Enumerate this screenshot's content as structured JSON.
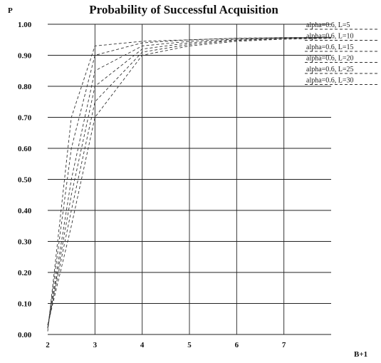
{
  "chart_data": {
    "type": "line",
    "title": "Probability of Successful Acquisition",
    "ylabel": "P",
    "xlabel": "B+1",
    "xlim": [
      2,
      8
    ],
    "ylim": [
      0,
      1
    ],
    "x_ticks": [
      2,
      3,
      4,
      5,
      6,
      7
    ],
    "y_ticks": [
      0.0,
      0.1,
      0.2,
      0.3,
      0.4,
      0.5,
      0.6,
      0.7,
      0.8,
      0.9,
      1.0
    ],
    "y_tick_labels": [
      "0.00",
      "0.10",
      "0.20",
      "0.30",
      "0.40",
      "0.50",
      "0.60",
      "0.70",
      "0.80",
      "0.90",
      "1.00"
    ],
    "grid": true,
    "legend_position": "top-right",
    "series": [
      {
        "name": "alpha=0.6, L=5",
        "x": [
          2,
          2.5,
          3,
          4,
          5,
          6,
          7,
          8
        ],
        "y": [
          0.01,
          0.7,
          0.93,
          0.945,
          0.95,
          0.955,
          0.957,
          0.958
        ]
      },
      {
        "name": "alpha=0.6, L=10",
        "x": [
          2,
          2.5,
          3,
          4,
          5,
          6,
          7,
          8
        ],
        "y": [
          0.02,
          0.6,
          0.9,
          0.94,
          0.95,
          0.955,
          0.957,
          0.958
        ]
      },
      {
        "name": "alpha=0.6, L=15",
        "x": [
          2,
          2.5,
          3,
          4,
          5,
          6,
          7,
          8
        ],
        "y": [
          0.02,
          0.5,
          0.85,
          0.93,
          0.945,
          0.952,
          0.955,
          0.957
        ]
      },
      {
        "name": "alpha=0.6, L=20",
        "x": [
          2,
          2.5,
          3,
          4,
          5,
          6,
          7,
          8
        ],
        "y": [
          0.02,
          0.45,
          0.8,
          0.92,
          0.94,
          0.95,
          0.955,
          0.956
        ]
      },
      {
        "name": "alpha=0.6, L=25",
        "x": [
          2,
          2.5,
          3,
          4,
          5,
          6,
          7,
          8
        ],
        "y": [
          0.03,
          0.4,
          0.75,
          0.91,
          0.935,
          0.948,
          0.953,
          0.955
        ]
      },
      {
        "name": "alpha=0.6, L=30",
        "x": [
          2,
          2.5,
          3,
          4,
          5,
          6,
          7,
          8
        ],
        "y": [
          0.03,
          0.35,
          0.7,
          0.9,
          0.93,
          0.945,
          0.952,
          0.955
        ]
      }
    ]
  }
}
